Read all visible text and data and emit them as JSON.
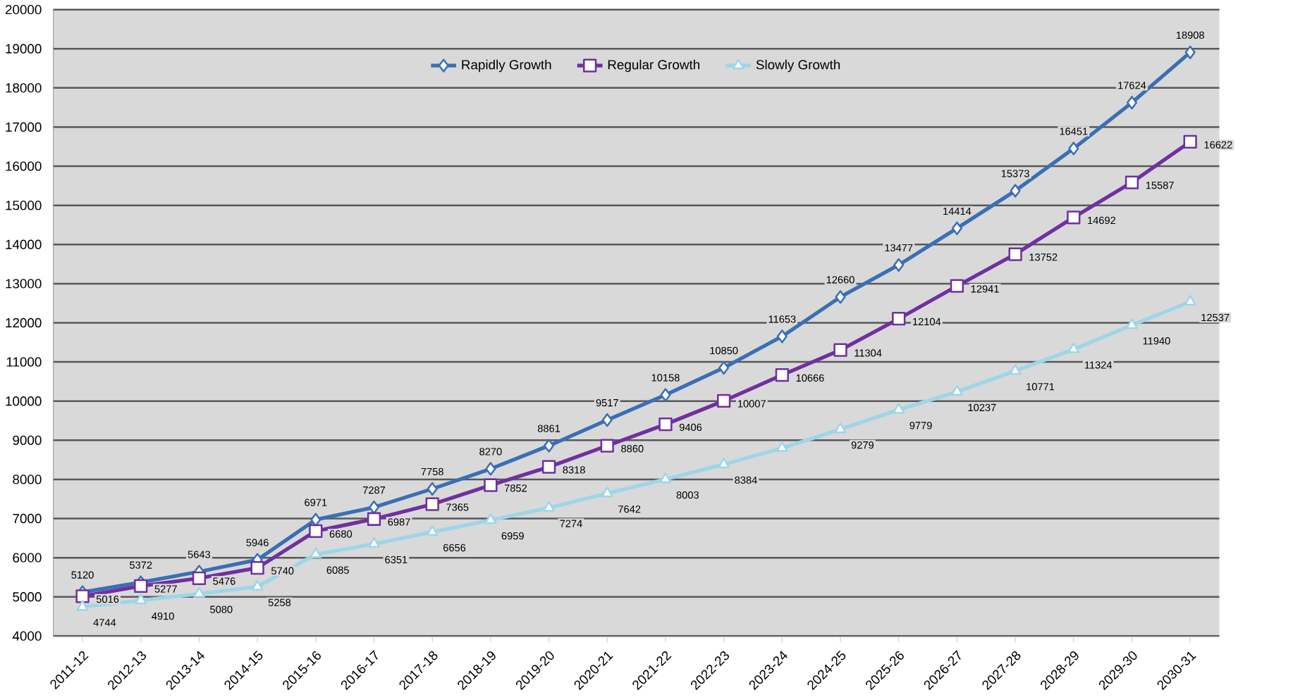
{
  "chart_data": {
    "type": "line",
    "categories": [
      "2011-12",
      "2012-13",
      "2013-14",
      "2014-15",
      "2015-16",
      "2016-17",
      "2017-18",
      "2018-19",
      "2019-20",
      "2020-21",
      "2021-22",
      "2022-23",
      "2023-24",
      "2024-25",
      "2025-26",
      "2026-27",
      "2027-28",
      "2028-29",
      "2029-30",
      "2030-31"
    ],
    "series": [
      {
        "name": "Rapidly Growth",
        "color": "#3a6fb5",
        "marker": "diamond",
        "values": [
          5120,
          5372,
          5643,
          5946,
          6971,
          7287,
          7758,
          8270,
          8861,
          9517,
          10158,
          10850,
          11653,
          12660,
          13477,
          14414,
          15373,
          16451,
          17624,
          18908
        ],
        "value_labels": [
          "5120",
          "5372",
          "5643",
          "5946",
          "6971",
          "7287",
          "7758",
          "8270",
          "8861",
          "9517",
          "10158",
          "10850",
          "11653",
          "12660",
          "13477",
          "14414",
          "15373",
          "16451",
          "17624",
          "18908"
        ]
      },
      {
        "name": "Regular Growth",
        "color": "#7030a0",
        "marker": "square",
        "values": [
          5016,
          5277,
          5476,
          5740,
          6680,
          6987,
          7365,
          7852,
          8318,
          8860,
          9406,
          10007,
          10666,
          11304,
          12104,
          12941,
          13752,
          14692,
          15587,
          16622
        ],
        "value_labels": [
          "5016",
          "5277",
          "5476",
          "5740",
          "6680",
          "6987",
          "7365",
          "7852",
          "8318",
          "8860",
          "9406",
          "10007",
          "10666",
          "11304",
          "12104",
          "12941",
          "13752",
          "14692",
          "15587",
          "16622"
        ]
      },
      {
        "name": "Slowly Growth",
        "color": "#9dd6e8",
        "marker": "triangle",
        "values": [
          4744,
          4910,
          5080,
          5258,
          6085,
          6351,
          6656,
          6959,
          7274,
          7642,
          8003,
          8384,
          8800,
          9279,
          9779,
          10237,
          10771,
          11324,
          11940,
          12537
        ],
        "value_labels": [
          "4744",
          "4910",
          "5080",
          "5258",
          "6085",
          "6351",
          "6656",
          "6959",
          "7274",
          "7642",
          "8003",
          "8384",
          null,
          "9279",
          "9779",
          "10237",
          "10771",
          "11324",
          "11940",
          "12537"
        ]
      }
    ],
    "ylim": [
      4000,
      20000
    ],
    "yticks": [
      4000,
      5000,
      6000,
      7000,
      8000,
      9000,
      10000,
      11000,
      12000,
      13000,
      14000,
      15000,
      16000,
      17000,
      18000,
      19000,
      20000
    ],
    "grid": "y",
    "legend": "top",
    "line_style": "solid"
  }
}
